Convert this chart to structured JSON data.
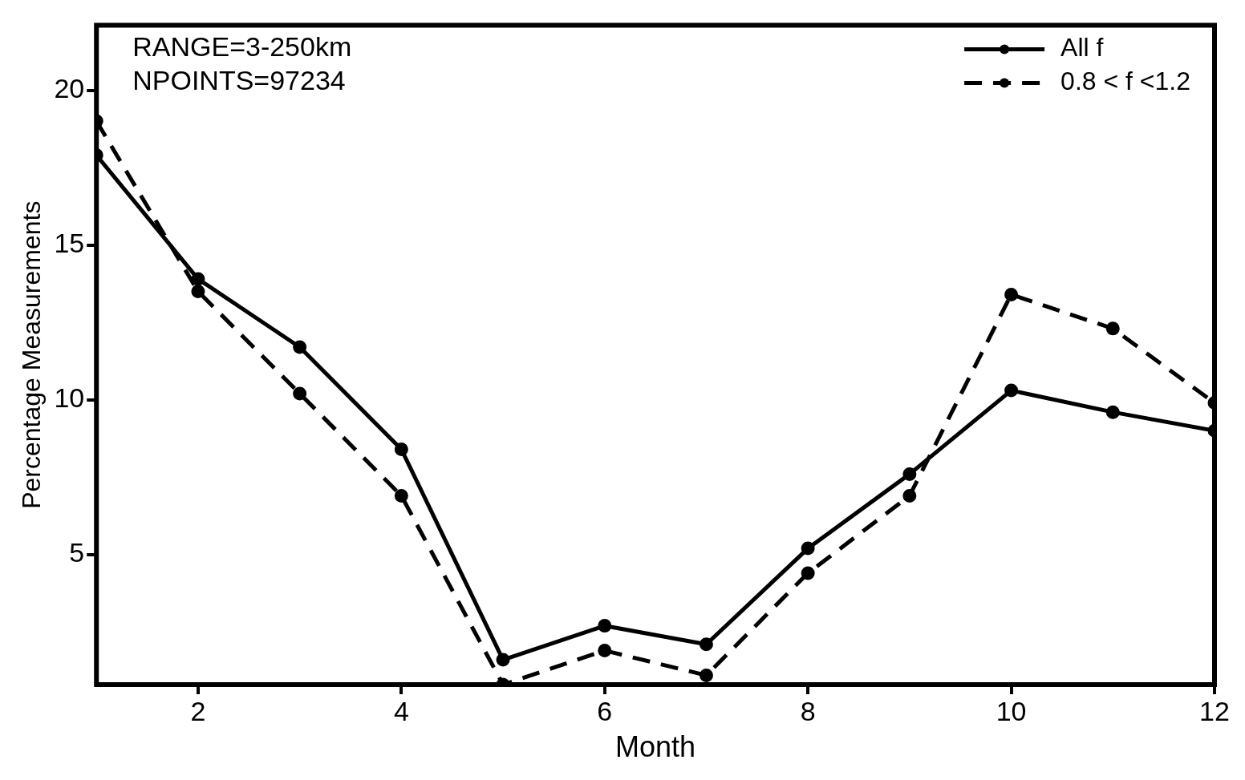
{
  "chart_data": {
    "type": "line",
    "xlabel": "Month",
    "ylabel": "Percentage Measurements",
    "x": [
      1,
      2,
      3,
      4,
      5,
      6,
      7,
      8,
      9,
      10,
      11,
      12
    ],
    "series": [
      {
        "name": "All f",
        "color": "#000000",
        "line_style": "solid",
        "values": [
          17.9,
          13.9,
          11.7,
          8.4,
          1.6,
          2.7,
          2.1,
          5.2,
          7.6,
          10.3,
          9.6,
          9.0
        ]
      },
      {
        "name": "0.8 < f <1.2",
        "color": "#000000",
        "line_style": "dashed",
        "values": [
          19.0,
          13.5,
          10.2,
          6.9,
          0.8,
          1.9,
          1.1,
          4.4,
          6.9,
          13.4,
          12.3,
          9.9
        ]
      }
    ],
    "xlim": [
      1,
      12
    ],
    "xticks": [
      2,
      4,
      6,
      8,
      10,
      12
    ],
    "ylim": [
      0.8,
      22.1
    ],
    "yticks": [
      5,
      10,
      15,
      20
    ],
    "annotations": [
      "RANGE=3-250km",
      "NPOINTS=97234"
    ],
    "grid": false,
    "legend": "top right",
    "marker": "circle"
  }
}
